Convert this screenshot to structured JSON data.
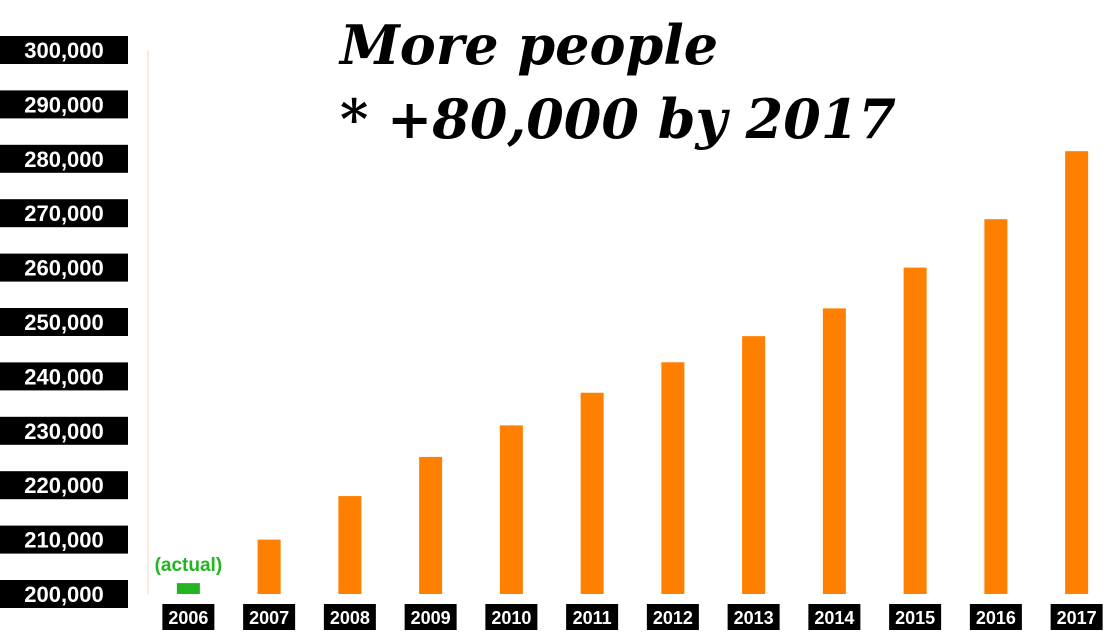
{
  "chart_data": {
    "type": "bar",
    "title_lines": [
      "More people",
      "* +80,000 by 2017"
    ],
    "xlabel": "",
    "ylabel": "",
    "categories": [
      "2006",
      "2007",
      "2008",
      "2009",
      "2010",
      "2011",
      "2012",
      "2013",
      "2014",
      "2015",
      "2016",
      "2017"
    ],
    "values": [
      202000,
      210000,
      218000,
      225200,
      231000,
      237000,
      242600,
      247400,
      252500,
      260000,
      268900,
      281400
    ],
    "ylim": [
      200000,
      300000
    ],
    "yticks": [
      "300,000",
      "290,000",
      "280,000",
      "270,000",
      "260,000",
      "250,000",
      "240,000",
      "230,000",
      "220,000",
      "210,000",
      "200,000"
    ],
    "ytick_values": [
      300000,
      290000,
      280000,
      270000,
      260000,
      250000,
      240000,
      230000,
      220000,
      210000,
      200000
    ],
    "grid": false,
    "annotation": {
      "text": "(actual)",
      "category": "2006"
    },
    "colors": {
      "projected": "#ff8000",
      "actual": "#22b522",
      "label_bg": "#000000",
      "label_text": "#ffffff"
    }
  }
}
